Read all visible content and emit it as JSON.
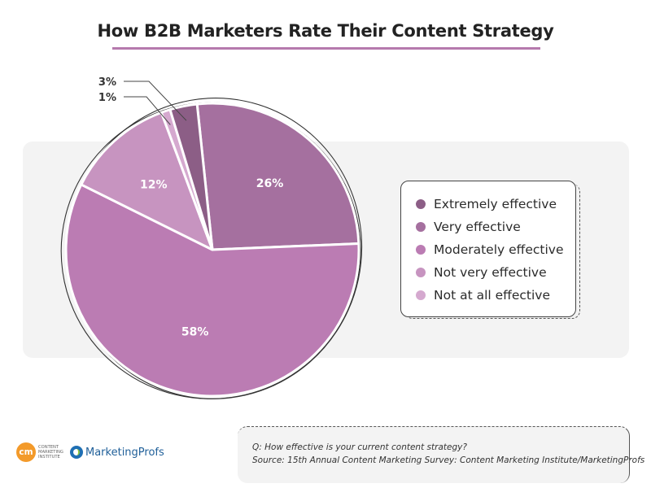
{
  "chart_data": {
    "type": "pie",
    "title": "How B2B Marketers Rate Their Content Strategy",
    "slices": [
      {
        "label": "Very effective",
        "value": 26,
        "display": "26%",
        "color": "#a5709f"
      },
      {
        "label": "Moderately effective",
        "value": 58,
        "display": "58%",
        "color": "#bb7cb3"
      },
      {
        "label": "Not very effective",
        "value": 12,
        "display": "12%",
        "color": "#c794c0"
      },
      {
        "label": "Not at all effective",
        "value": 1,
        "display": "1%",
        "color": "#d5a9cf"
      },
      {
        "label": "Extremely effective",
        "value": 3,
        "display": "3%",
        "color": "#8c5e86"
      }
    ],
    "legend": {
      "placement": "right",
      "entries": [
        {
          "label": "Extremely effective",
          "color": "#8c5e86"
        },
        {
          "label": "Very effective",
          "color": "#a5709f"
        },
        {
          "label": "Moderately effective",
          "color": "#bb7cb3"
        },
        {
          "label": "Not very effective",
          "color": "#c794c0"
        },
        {
          "label": "Not at all effective",
          "color": "#d5a9cf"
        }
      ]
    }
  },
  "footer": {
    "question": "Q: How effective is your current content strategy?",
    "source": "Source: 15th Annual Content Marketing Survey: Content Marketing Institute/MarketingProfs"
  },
  "logos": {
    "cmi_badge": "cm",
    "cmi_text": "Content Marketing Institute",
    "marketingprofs": "MarketingProfs"
  }
}
